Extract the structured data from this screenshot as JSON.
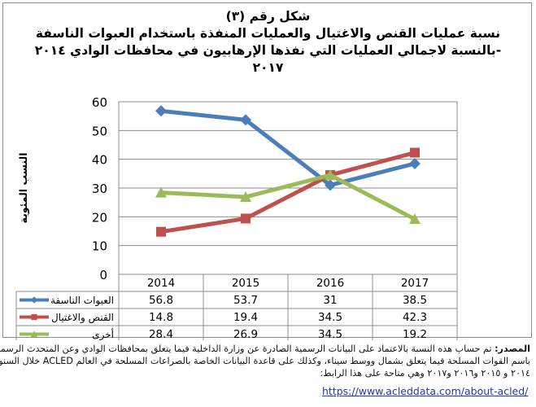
{
  "title": {
    "line1": "شكل رقم (٣)",
    "line2": "نسبة عمليات القنص والاغتيال والعمليات المنفذة باستخدام العبوات الناسفة",
    "line3": "بالنسبة لاجمالي العمليات التي نفذها الإرهابيون في محافظات الوادي ٢٠١٤-",
    "line4": "٢٠١٧"
  },
  "chart_data": {
    "type": "line",
    "categories": [
      "2014",
      "2015",
      "2016",
      "2017"
    ],
    "ylabel": "النسب المئوية",
    "ylim": [
      0,
      60
    ],
    "yticks": [
      "0",
      "10",
      "20",
      "30",
      "40",
      "50",
      "60"
    ],
    "grid": true,
    "legend": "data-table-left",
    "series": [
      {
        "name": "العبوات الناسفة",
        "values": [
          56.8,
          53.7,
          31,
          38.5
        ],
        "color": "#4a7ebb",
        "marker": "diamond",
        "display": [
          "56.8",
          "53.7",
          "31",
          "38.5"
        ]
      },
      {
        "name": "القنص والاغتيال",
        "values": [
          14.8,
          19.4,
          34.5,
          42.3
        ],
        "color": "#c0504d",
        "marker": "square",
        "display": [
          "14.8",
          "19.4",
          "34.5",
          "42.3"
        ]
      },
      {
        "name": "أخرى",
        "values": [
          28.4,
          26.9,
          34.5,
          19.2
        ],
        "color": "#9bbb59",
        "marker": "triangle",
        "display": [
          "28.4",
          "26.9",
          "34.5",
          "19.2"
        ]
      }
    ]
  },
  "source": {
    "label": "المصدر:",
    "line1": "تم حساب هذه النسبة بالاعتماد على البيانات الرسمية الصادرة عن وزارة الداخلية فيما يتعلق بمحافظات الوادي وعن المتحدث الرسمي",
    "line2": "باسم القوات المسلحة فيما يتعلق بشمال ووسط سيناء، وكذلك على قاعدة البيانات الخاصة بالصراعات المسلحة في العالم ACLED خلال السنوات",
    "line3": "٢٠١٤ و ٢٠١٥ و٢٠١٦ و٢٠١٧ وهي متاحة على هذا الرابط:",
    "url": "https://www.acleddata.com/about-acled/"
  }
}
